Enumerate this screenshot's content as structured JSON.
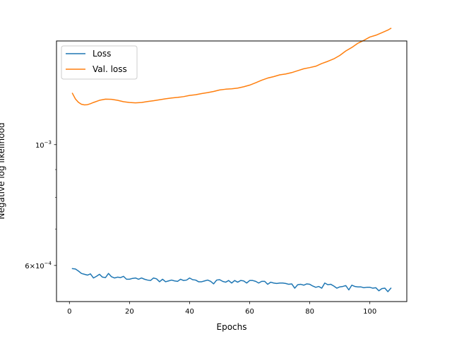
{
  "chart_data": {
    "type": "line",
    "title": "",
    "xlabel": "Epochs",
    "ylabel": "Negative log likelihood",
    "xlim": [
      -4.3,
      112.3
    ],
    "ylim": [
      0.000515,
      0.00155
    ],
    "yscale": "log",
    "grid": false,
    "legend_position": "upper left",
    "x_ticks": [
      0,
      20,
      40,
      60,
      80,
      100
    ],
    "x_tick_labels": [
      "0",
      "20",
      "40",
      "60",
      "80",
      "100"
    ],
    "y_ticks": [
      0.0006,
      0.001
    ],
    "y_tick_labels": [
      {
        "base": "6×10",
        "exp": "−4"
      },
      {
        "base": "10",
        "exp": "−3"
      }
    ],
    "y_minor_ticks": [
      0.0007,
      0.0008,
      0.0009
    ],
    "series": [
      {
        "name": "Loss",
        "color": "#1f77b4",
        "x": [
          1,
          2,
          3,
          4,
          5,
          6,
          7,
          8,
          9,
          10,
          11,
          12,
          13,
          14,
          15,
          16,
          17,
          18,
          19,
          20,
          21,
          22,
          23,
          24,
          25,
          26,
          27,
          28,
          29,
          30,
          31,
          32,
          33,
          34,
          35,
          36,
          37,
          38,
          39,
          40,
          41,
          42,
          43,
          44,
          45,
          46,
          47,
          48,
          49,
          50,
          51,
          52,
          53,
          54,
          55,
          56,
          57,
          58,
          59,
          60,
          61,
          62,
          63,
          64,
          65,
          66,
          67,
          68,
          69,
          70,
          71,
          72,
          73,
          74,
          75,
          76,
          77,
          78,
          79,
          80,
          81,
          82,
          83,
          84,
          85,
          86,
          87,
          88,
          89,
          90,
          91,
          92,
          93,
          94,
          95,
          96,
          97,
          98,
          99,
          100,
          101,
          102,
          103,
          104,
          105,
          106,
          107
        ],
        "values": [
          0.000592,
          0.000591,
          0.000586,
          0.00058,
          0.000578,
          0.000576,
          0.000579,
          0.000569,
          0.000573,
          0.000578,
          0.000571,
          0.00057,
          0.00058,
          0.000572,
          0.000569,
          0.000571,
          0.00057,
          0.000573,
          0.000566,
          0.000566,
          0.000568,
          0.000569,
          0.000566,
          0.000569,
          0.000566,
          0.000564,
          0.000563,
          0.000569,
          0.000567,
          0.00056,
          0.000566,
          0.00056,
          0.000562,
          0.000564,
          0.000562,
          0.000561,
          0.000566,
          0.000563,
          0.000564,
          0.000569,
          0.000565,
          0.000564,
          0.00056,
          0.00056,
          0.000562,
          0.000564,
          0.000561,
          0.000555,
          0.000564,
          0.000565,
          0.000561,
          0.000559,
          0.000563,
          0.000557,
          0.000563,
          0.000559,
          0.000563,
          0.000562,
          0.000557,
          0.000563,
          0.000563,
          0.000561,
          0.000557,
          0.000561,
          0.000561,
          0.000554,
          0.000559,
          0.000557,
          0.000556,
          0.000557,
          0.000557,
          0.000556,
          0.000554,
          0.000555,
          0.000545,
          0.000553,
          0.000554,
          0.000552,
          0.000555,
          0.000554,
          0.00055,
          0.000547,
          0.000549,
          0.000545,
          0.000557,
          0.000553,
          0.000554,
          0.00055,
          0.000545,
          0.000548,
          0.000549,
          0.000551,
          0.000541,
          0.000552,
          0.000549,
          0.000548,
          0.000548,
          0.000546,
          0.000547,
          0.000547,
          0.000545,
          0.000546,
          0.000539,
          0.000544,
          0.000545,
          0.000537,
          0.000545
        ]
      },
      {
        "name": "Val. loss",
        "color": "#ff7f0e",
        "x": [
          1,
          2,
          3,
          4,
          5,
          6,
          7,
          8,
          10,
          12,
          14,
          16,
          18,
          20,
          22,
          24,
          26,
          28,
          30,
          32,
          34,
          36,
          38,
          40,
          42,
          44,
          46,
          48,
          50,
          52,
          54,
          56,
          58,
          60,
          62,
          64,
          66,
          68,
          70,
          72,
          74,
          76,
          78,
          80,
          82,
          84,
          86,
          88,
          90,
          92,
          94,
          96,
          98,
          100,
          102,
          104,
          106,
          107
        ],
        "values": [
          0.001242,
          0.001213,
          0.001196,
          0.001186,
          0.001183,
          0.001184,
          0.001189,
          0.001195,
          0.001206,
          0.001212,
          0.001211,
          0.001206,
          0.001199,
          0.001195,
          0.001193,
          0.001195,
          0.0012,
          0.001204,
          0.001209,
          0.001214,
          0.001218,
          0.001221,
          0.001225,
          0.001231,
          0.001235,
          0.001241,
          0.001246,
          0.001252,
          0.00126,
          0.001264,
          0.001266,
          0.00127,
          0.001277,
          0.001286,
          0.001299,
          0.001313,
          0.001325,
          0.001333,
          0.001343,
          0.001348,
          0.001356,
          0.001367,
          0.001378,
          0.001385,
          0.001393,
          0.001409,
          0.001422,
          0.001437,
          0.001458,
          0.001486,
          0.001508,
          0.001535,
          0.001554,
          0.001576,
          0.001588,
          0.001605,
          0.001623,
          0.001635
        ]
      }
    ]
  }
}
